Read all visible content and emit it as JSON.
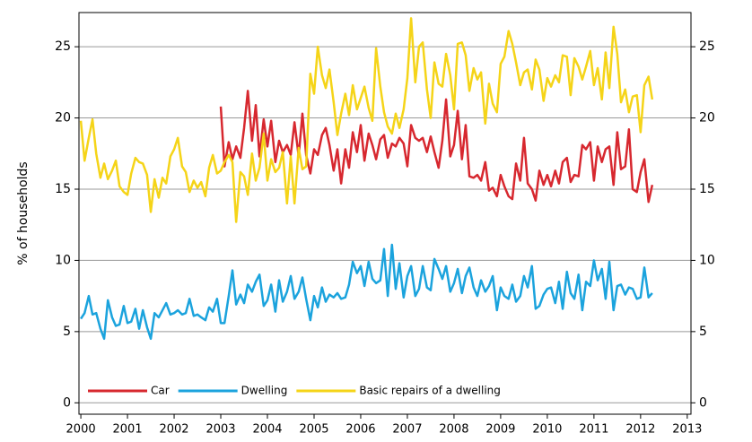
{
  "chart_data": {
    "type": "line",
    "ylabel": "% of households",
    "xlim": [
      1999.96,
      2013.08
    ],
    "ylim": [
      -0.8,
      27.4
    ],
    "xticks": [
      2000,
      2001,
      2002,
      2003,
      2004,
      2005,
      2006,
      2007,
      2008,
      2009,
      2010,
      2011,
      2012,
      2013
    ],
    "yticks": [
      0,
      5,
      10,
      15,
      20,
      25
    ],
    "grid": true,
    "legend": "lower left",
    "right_axis": true,
    "x": [
      2000.0,
      2000.08,
      2000.17,
      2000.25,
      2000.33,
      2000.42,
      2000.5,
      2000.58,
      2000.67,
      2000.75,
      2000.83,
      2000.92,
      2001.0,
      2001.08,
      2001.17,
      2001.25,
      2001.33,
      2001.42,
      2001.5,
      2001.58,
      2001.67,
      2001.75,
      2001.83,
      2001.92,
      2002.0,
      2002.08,
      2002.17,
      2002.25,
      2002.33,
      2002.42,
      2002.5,
      2002.58,
      2002.67,
      2002.75,
      2002.83,
      2002.92,
      2003.0,
      2003.08,
      2003.17,
      2003.25,
      2003.33,
      2003.42,
      2003.5,
      2003.58,
      2003.67,
      2003.75,
      2003.83,
      2003.92,
      2004.0,
      2004.08,
      2004.17,
      2004.25,
      2004.33,
      2004.42,
      2004.5,
      2004.58,
      2004.67,
      2004.75,
      2004.83,
      2004.92,
      2005.0,
      2005.08,
      2005.17,
      2005.25,
      2005.33,
      2005.42,
      2005.5,
      2005.58,
      2005.67,
      2005.75,
      2005.83,
      2005.92,
      2006.0,
      2006.08,
      2006.17,
      2006.25,
      2006.33,
      2006.42,
      2006.5,
      2006.58,
      2006.67,
      2006.75,
      2006.83,
      2006.92,
      2007.0,
      2007.08,
      2007.17,
      2007.25,
      2007.33,
      2007.42,
      2007.5,
      2007.58,
      2007.67,
      2007.75,
      2007.83,
      2007.92,
      2008.0,
      2008.08,
      2008.17,
      2008.25,
      2008.33,
      2008.42,
      2008.5,
      2008.58,
      2008.67,
      2008.75,
      2008.83,
      2008.92,
      2009.0,
      2009.08,
      2009.17,
      2009.25,
      2009.33,
      2009.42,
      2009.5,
      2009.58,
      2009.67,
      2009.75,
      2009.83,
      2009.92,
      2010.0,
      2010.08,
      2010.17,
      2010.25,
      2010.33,
      2010.42,
      2010.5,
      2010.58,
      2010.67,
      2010.75,
      2010.83,
      2010.92,
      2011.0,
      2011.08,
      2011.17,
      2011.25,
      2011.33,
      2011.42,
      2011.5,
      2011.58,
      2011.67,
      2011.75,
      2011.83,
      2011.92,
      2012.0,
      2012.08,
      2012.17,
      2012.25
    ],
    "series": [
      {
        "name": "Car",
        "color": "#d7282f",
        "values": [
          null,
          null,
          null,
          null,
          null,
          null,
          null,
          null,
          null,
          null,
          null,
          null,
          null,
          null,
          null,
          null,
          null,
          null,
          null,
          null,
          null,
          null,
          null,
          null,
          null,
          null,
          null,
          null,
          null,
          null,
          null,
          null,
          null,
          null,
          null,
          null,
          20.8,
          16.6,
          18.3,
          17.1,
          18.0,
          17.2,
          19.3,
          21.9,
          18.4,
          20.9,
          17.3,
          19.9,
          18.0,
          19.8,
          16.9,
          18.4,
          17.6,
          18.1,
          17.4,
          19.7,
          17.3,
          20.3,
          17.4,
          16.1,
          17.8,
          17.4,
          18.8,
          19.3,
          18.1,
          16.3,
          17.8,
          15.4,
          17.8,
          16.5,
          19.0,
          17.6,
          19.5,
          17.0,
          18.9,
          18.1,
          17.1,
          18.5,
          18.8,
          17.2,
          18.2,
          18.0,
          18.6,
          18.2,
          16.6,
          19.5,
          18.6,
          18.4,
          18.6,
          17.6,
          18.7,
          17.6,
          16.5,
          18.4,
          21.3,
          17.3,
          18.1,
          20.5,
          17.1,
          19.5,
          15.9,
          15.8,
          16.0,
          15.6,
          16.9,
          14.9,
          15.1,
          14.5,
          16.0,
          15.2,
          14.5,
          14.3,
          16.8,
          15.6,
          18.6,
          15.4,
          15.0,
          14.2,
          16.3,
          15.3,
          16.0,
          15.2,
          16.3,
          15.4,
          16.9,
          17.2,
          15.5,
          16.0,
          15.9,
          18.1,
          17.8,
          18.3,
          15.6,
          18.0,
          16.9,
          17.8,
          18.0,
          15.3,
          19.0,
          16.4,
          16.6,
          19.2,
          15.0,
          14.8,
          16.2,
          17.1,
          14.1,
          15.3
        ]
      },
      {
        "name": "Dwelling",
        "color": "#1ba3dd",
        "values": [
          5.9,
          6.3,
          7.5,
          6.2,
          6.3,
          5.2,
          4.5,
          7.2,
          6.0,
          5.4,
          5.5,
          6.8,
          5.6,
          5.7,
          6.6,
          5.2,
          6.5,
          5.3,
          4.5,
          6.3,
          6.0,
          6.5,
          7.0,
          6.2,
          6.3,
          6.5,
          6.2,
          6.3,
          7.3,
          6.1,
          6.2,
          6.0,
          5.8,
          6.7,
          6.4,
          7.3,
          5.6,
          5.6,
          7.5,
          9.3,
          6.9,
          7.6,
          7.0,
          8.3,
          7.8,
          8.5,
          9.0,
          6.8,
          7.2,
          8.3,
          6.4,
          8.6,
          7.1,
          7.8,
          8.9,
          7.3,
          7.8,
          8.8,
          7.3,
          5.8,
          7.5,
          6.7,
          8.1,
          7.1,
          7.6,
          7.4,
          7.7,
          7.3,
          7.4,
          8.3,
          9.9,
          9.1,
          9.6,
          8.2,
          9.9,
          8.7,
          8.4,
          8.6,
          10.8,
          7.5,
          11.1,
          8.0,
          9.8,
          7.4,
          8.9,
          9.6,
          7.5,
          8.0,
          9.6,
          8.1,
          7.9,
          10.1,
          9.4,
          8.7,
          9.6,
          7.8,
          8.4,
          9.4,
          7.7,
          8.9,
          9.5,
          8.1,
          7.5,
          8.6,
          7.8,
          8.2,
          8.9,
          6.5,
          8.1,
          7.5,
          7.3,
          8.3,
          7.1,
          7.5,
          8.9,
          8.1,
          9.6,
          6.6,
          6.8,
          7.6,
          8.0,
          8.1,
          7.0,
          8.5,
          6.6,
          9.2,
          7.7,
          7.3,
          9.0,
          6.5,
          8.5,
          8.2,
          10.0,
          8.6,
          9.4,
          7.3,
          9.9,
          6.5,
          8.2,
          8.3,
          7.6,
          8.1,
          8.0,
          7.3,
          7.4,
          9.5,
          7.4,
          7.7
        ]
      },
      {
        "name": "Basic repairs of a dwelling",
        "color": "#f5d418",
        "values": [
          19.8,
          17.0,
          18.6,
          19.9,
          17.5,
          15.8,
          16.8,
          15.7,
          16.3,
          17.0,
          15.2,
          14.8,
          14.6,
          16.1,
          17.2,
          16.9,
          16.8,
          16.0,
          13.4,
          15.7,
          14.4,
          15.8,
          15.4,
          17.3,
          17.8,
          18.6,
          16.6,
          16.2,
          14.8,
          15.6,
          15.1,
          15.5,
          14.5,
          16.5,
          17.4,
          16.1,
          16.3,
          16.9,
          17.4,
          16.9,
          12.7,
          16.2,
          15.9,
          14.6,
          17.5,
          15.6,
          16.5,
          18.9,
          15.6,
          17.1,
          16.2,
          16.5,
          17.6,
          14.0,
          17.3,
          14.0,
          17.9,
          16.4,
          16.6,
          23.1,
          21.7,
          25.0,
          23.0,
          22.1,
          23.4,
          21.1,
          18.8,
          20.3,
          21.7,
          20.2,
          22.3,
          20.6,
          21.4,
          22.2,
          20.7,
          19.8,
          24.9,
          22.2,
          20.4,
          19.4,
          18.9,
          20.3,
          19.3,
          20.6,
          22.8,
          27.0,
          22.5,
          25.0,
          25.3,
          22.0,
          20.0,
          23.9,
          22.4,
          22.2,
          24.5,
          23.0,
          20.6,
          25.2,
          25.3,
          24.4,
          21.9,
          23.5,
          22.7,
          23.2,
          19.6,
          22.4,
          21.0,
          20.4,
          23.8,
          24.3,
          26.1,
          25.2,
          23.9,
          22.3,
          23.2,
          23.4,
          22.0,
          24.1,
          23.4,
          21.2,
          22.8,
          22.2,
          23.0,
          22.5,
          24.4,
          24.3,
          21.6,
          24.2,
          23.6,
          22.7,
          23.6,
          24.7,
          22.3,
          23.5,
          21.3,
          24.6,
          22.1,
          26.4,
          24.5,
          21.1,
          22.0,
          20.4,
          21.5,
          21.6,
          19.0,
          22.3,
          22.9,
          21.3
        ]
      }
    ]
  }
}
